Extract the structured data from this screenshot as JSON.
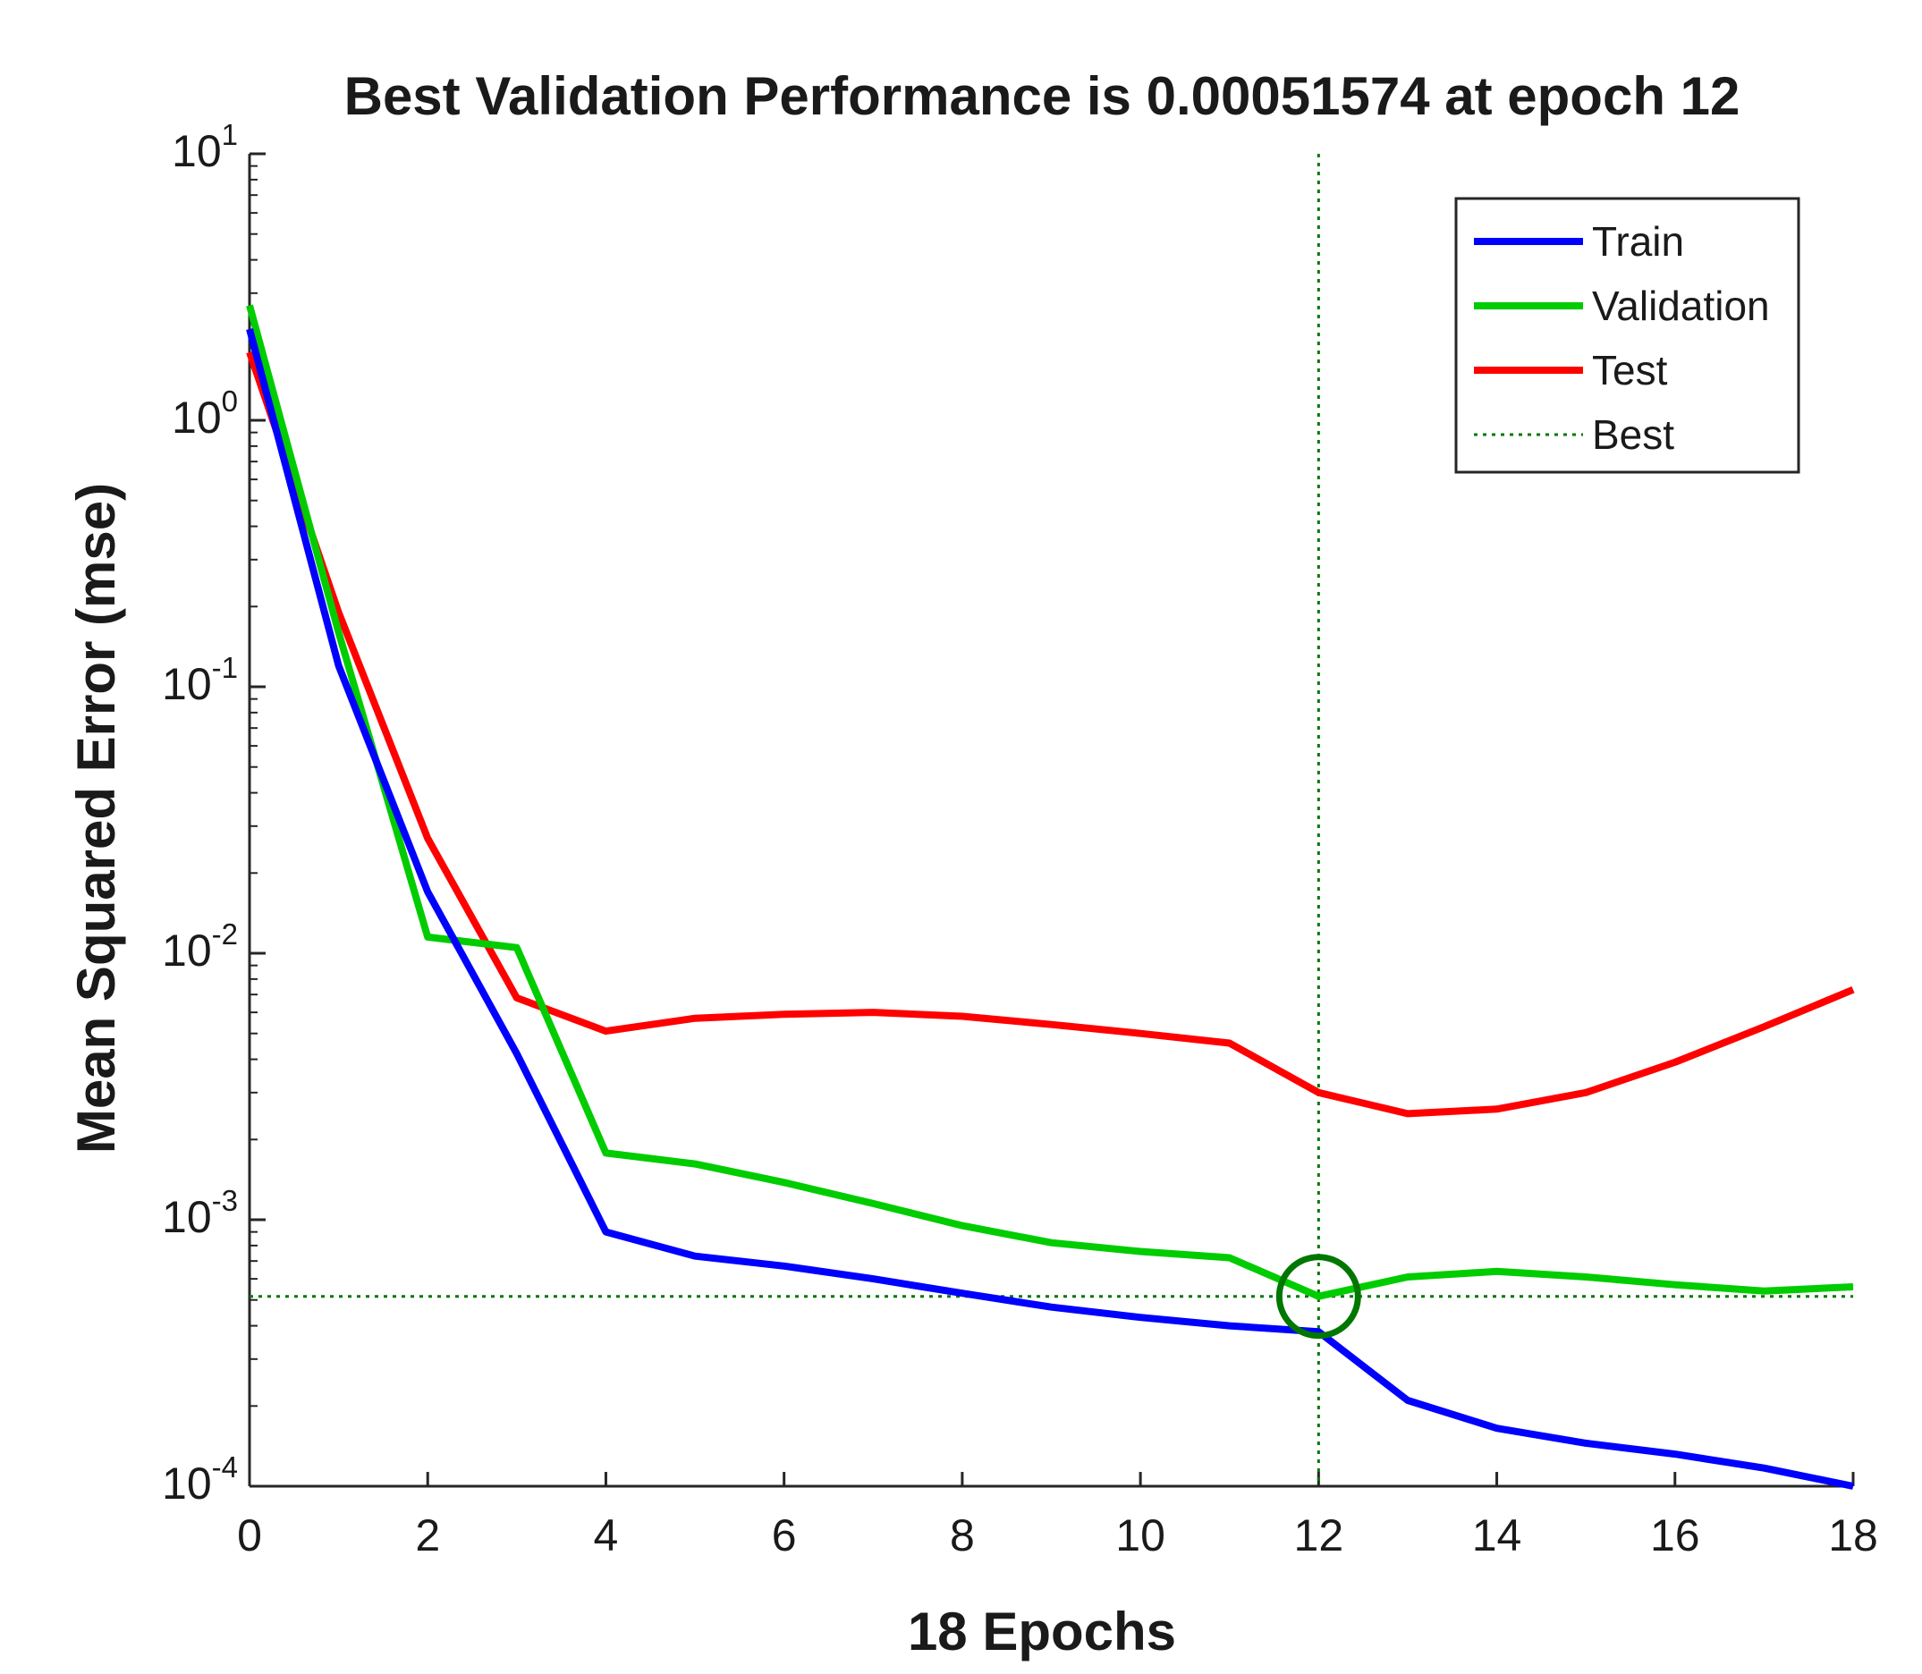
{
  "chart_data": {
    "type": "line",
    "title": "Best Validation Performance is 0.00051574 at epoch 12",
    "xlabel": "18 Epochs",
    "ylabel": "Mean Squared Error  (mse)",
    "yscale": "log",
    "xlim": [
      0,
      18
    ],
    "ylim": [
      0.0001,
      10
    ],
    "x_ticks": [
      0,
      2,
      4,
      6,
      8,
      10,
      12,
      14,
      16,
      18
    ],
    "y_ticks": [
      {
        "base": "10",
        "exp": "1",
        "value": 10
      },
      {
        "base": "10",
        "exp": "0",
        "value": 1
      },
      {
        "base": "10",
        "exp": "-1",
        "value": 0.1
      },
      {
        "base": "10",
        "exp": "-2",
        "value": 0.01
      },
      {
        "base": "10",
        "exp": "-3",
        "value": 0.001
      },
      {
        "base": "10",
        "exp": "-4",
        "value": 0.0001
      }
    ],
    "x": [
      0,
      1,
      2,
      3,
      4,
      5,
      6,
      7,
      8,
      9,
      10,
      11,
      12,
      13,
      14,
      15,
      16,
      17,
      18
    ],
    "series": [
      {
        "name": "Train",
        "color": "#0000ff",
        "values": [
          2.2,
          0.12,
          0.017,
          0.0042,
          0.0009,
          0.00073,
          0.00067,
          0.0006,
          0.00053,
          0.00047,
          0.00043,
          0.0004,
          0.00038,
          0.00021,
          0.000165,
          0.000145,
          0.000132,
          0.000117,
          0.0001
        ]
      },
      {
        "name": "Validation",
        "color": "#00cc00",
        "values": [
          2.7,
          0.16,
          0.0115,
          0.0105,
          0.00178,
          0.00162,
          0.00138,
          0.00115,
          0.00095,
          0.00082,
          0.00076,
          0.00072,
          0.00051574,
          0.00061,
          0.00064,
          0.00061,
          0.00057,
          0.00054,
          0.00056
        ]
      },
      {
        "name": "Test",
        "color": "#ff0000",
        "values": [
          1.8,
          0.19,
          0.027,
          0.0068,
          0.0051,
          0.0057,
          0.0059,
          0.006,
          0.0058,
          0.0054,
          0.005,
          0.0046,
          0.003,
          0.0025,
          0.0026,
          0.003,
          0.0039,
          0.0053,
          0.0073
        ]
      }
    ],
    "best": {
      "label": "Best",
      "epoch": 12,
      "value": 0.00051574,
      "color": "#007700"
    },
    "legend": {
      "position": "top-right",
      "entries": [
        "Train",
        "Validation",
        "Test",
        "Best"
      ]
    }
  }
}
